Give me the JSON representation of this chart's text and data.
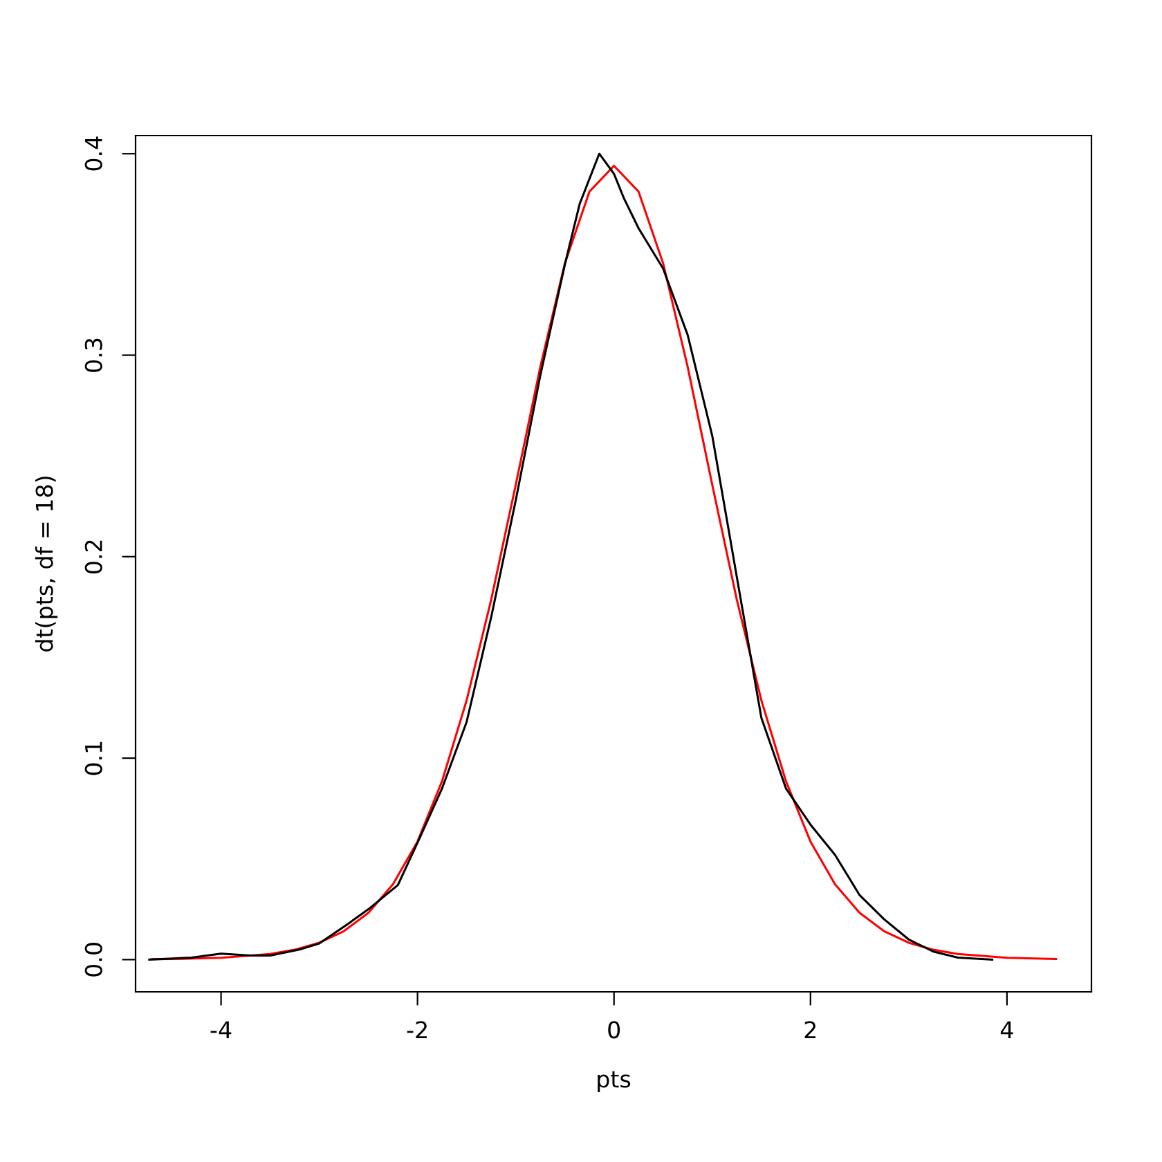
{
  "chart_data": {
    "type": "line",
    "xlabel": "pts",
    "ylabel": "dt(pts, df = 18)",
    "xlim": [
      -4.87,
      4.86
    ],
    "ylim": [
      -0.016,
      0.409
    ],
    "xticks": [
      -4,
      -2,
      0,
      2,
      4
    ],
    "yticks": [
      {
        "value": 0,
        "label": "0.0"
      },
      {
        "value": 0.1,
        "label": "0.1"
      },
      {
        "value": 0.2,
        "label": "0.2"
      },
      {
        "value": 0.3,
        "label": "0.3"
      },
      {
        "value": 0.4,
        "label": "0.4"
      }
    ],
    "grid": false,
    "legend": false,
    "marker": "none",
    "line_style": "solid",
    "series": [
      {
        "color": "#ff0000",
        "x": [
          -4.7,
          -4.5,
          -4,
          -3.5,
          -3.25,
          -3,
          -2.75,
          -2.5,
          -2.25,
          -2,
          -1.75,
          -1.5,
          -1.25,
          -1,
          -0.75,
          -0.5,
          -0.25,
          0,
          0.25,
          0.5,
          0.75,
          1,
          1.25,
          1.5,
          1.75,
          2,
          2.25,
          2.5,
          2.75,
          3,
          3.25,
          3.5,
          4,
          4.5
        ],
        "values": [
          0.0002,
          0.0003,
          0.0009,
          0.0028,
          0.0049,
          0.0084,
          0.0141,
          0.0232,
          0.0374,
          0.0586,
          0.0886,
          0.1287,
          0.1787,
          0.2357,
          0.2942,
          0.3456,
          0.3812,
          0.394,
          0.3812,
          0.3456,
          0.2942,
          0.2357,
          0.1787,
          0.1287,
          0.0886,
          0.0586,
          0.0374,
          0.0232,
          0.0141,
          0.0084,
          0.0049,
          0.0028,
          0.0009,
          0.0003
        ]
      },
      {
        "color": "#000000",
        "x": [
          -4.73,
          -4.3,
          -4,
          -3.7,
          -3.5,
          -3.2,
          -3,
          -2.7,
          -2.5,
          -2.2,
          -2,
          -1.75,
          -1.5,
          -1.25,
          -1,
          -0.75,
          -0.5,
          -0.35,
          -0.15,
          0,
          0.1,
          0.25,
          0.5,
          0.75,
          1,
          1.25,
          1.5,
          1.75,
          2,
          2.25,
          2.5,
          2.75,
          3,
          3.25,
          3.5,
          3.85
        ],
        "values": [
          0.0,
          0.001,
          0.003,
          0.002,
          0.002,
          0.005,
          0.008,
          0.018,
          0.025,
          0.037,
          0.058,
          0.085,
          0.118,
          0.17,
          0.228,
          0.29,
          0.345,
          0.375,
          0.4,
          0.39,
          0.378,
          0.363,
          0.343,
          0.31,
          0.26,
          0.19,
          0.12,
          0.085,
          0.067,
          0.052,
          0.032,
          0.02,
          0.01,
          0.004,
          0.001,
          0.0
        ]
      }
    ]
  }
}
